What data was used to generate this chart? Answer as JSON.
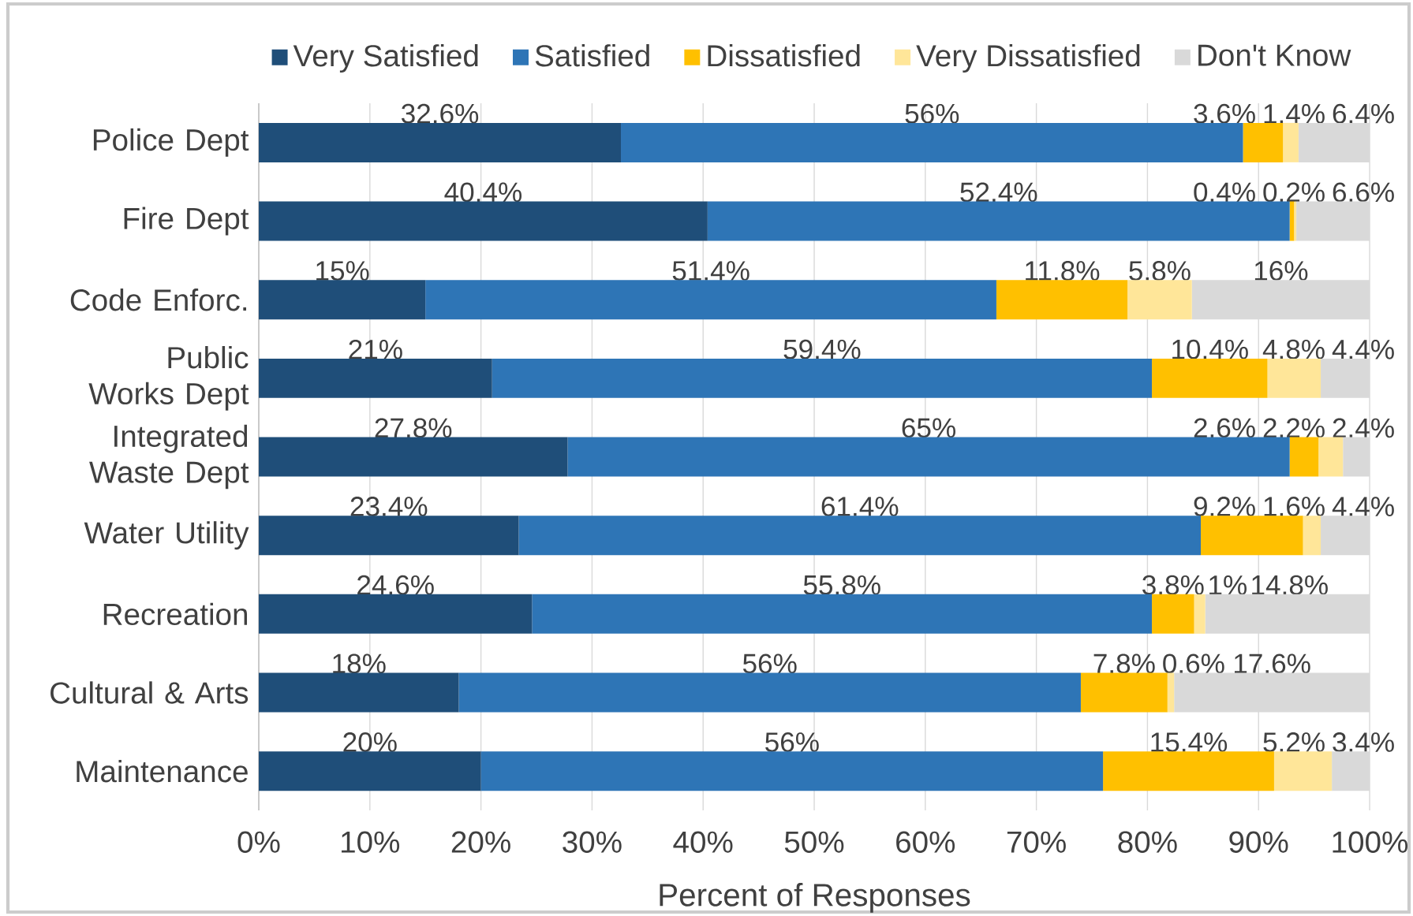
{
  "chart_data": {
    "type": "bar",
    "orientation": "horizontal",
    "stacked": true,
    "grid": "x",
    "legend": "top",
    "xlabel": "Percent of Responses",
    "xlim": [
      0,
      100
    ],
    "xticks": [
      {
        "value": 0,
        "label": "0%"
      },
      {
        "value": 10,
        "label": "10%"
      },
      {
        "value": 20,
        "label": "20%"
      },
      {
        "value": 30,
        "label": "30%"
      },
      {
        "value": 40,
        "label": "40%"
      },
      {
        "value": 50,
        "label": "50%"
      },
      {
        "value": 60,
        "label": "60%"
      },
      {
        "value": 70,
        "label": "70%"
      },
      {
        "value": 80,
        "label": "80%"
      },
      {
        "value": 90,
        "label": "90%"
      },
      {
        "value": 100,
        "label": "100%"
      }
    ],
    "categories": [
      "Police Dept",
      "Fire Dept",
      "Code Enforc.",
      "Public Works Dept",
      "Integrated Waste Dept",
      "Water Utility",
      "Recreation",
      "Cultural & Arts",
      "Maintenance"
    ],
    "series": [
      {
        "name": "Very Satisfied",
        "color": "#1f4e79",
        "values": [
          32.6,
          40.4,
          15,
          21,
          27.8,
          23.4,
          24.6,
          18,
          20
        ],
        "value_labels": [
          "32.6%",
          "40.4%",
          "15%",
          "21%",
          "27.8%",
          "23.4%",
          "24.6%",
          "18%",
          "20%"
        ]
      },
      {
        "name": "Satisfied",
        "color": "#2e75b6",
        "values": [
          56,
          52.4,
          51.4,
          59.4,
          65,
          61.4,
          55.8,
          56,
          56
        ],
        "value_labels": [
          "56%",
          "52.4%",
          "51.4%",
          "59.4%",
          "65%",
          "61.4%",
          "55.8%",
          "56%",
          "56%"
        ]
      },
      {
        "name": "Dissatisfied",
        "color": "#ffc000",
        "values": [
          3.6,
          0.4,
          11.8,
          10.4,
          2.6,
          9.2,
          3.8,
          7.8,
          15.4
        ],
        "value_labels": [
          "3.6%",
          "0.4%",
          "11.8%",
          "10.4%",
          "2.6%",
          "9.2%",
          "3.8%",
          "7.8%",
          "15.4%"
        ]
      },
      {
        "name": "Very Dissatisfied",
        "color": "#ffe699",
        "values": [
          1.4,
          0.2,
          5.8,
          4.8,
          2.2,
          1.6,
          1,
          0.6,
          5.2
        ],
        "value_labels": [
          "1.4%",
          "0.2%",
          "5.8%",
          "4.8%",
          "2.2%",
          "1.6%",
          "1%",
          "0.6%",
          "5.2%"
        ]
      },
      {
        "name": "Don't Know",
        "color": "#d9d9d9",
        "values": [
          6.4,
          6.6,
          16,
          4.4,
          2.4,
          4.4,
          14.8,
          17.6,
          3.4
        ],
        "value_labels": [
          "6.4%",
          "6.6%",
          "16%",
          "4.4%",
          "2.4%",
          "4.4%",
          "14.8%",
          "17.6%",
          "3.4%"
        ]
      }
    ]
  }
}
